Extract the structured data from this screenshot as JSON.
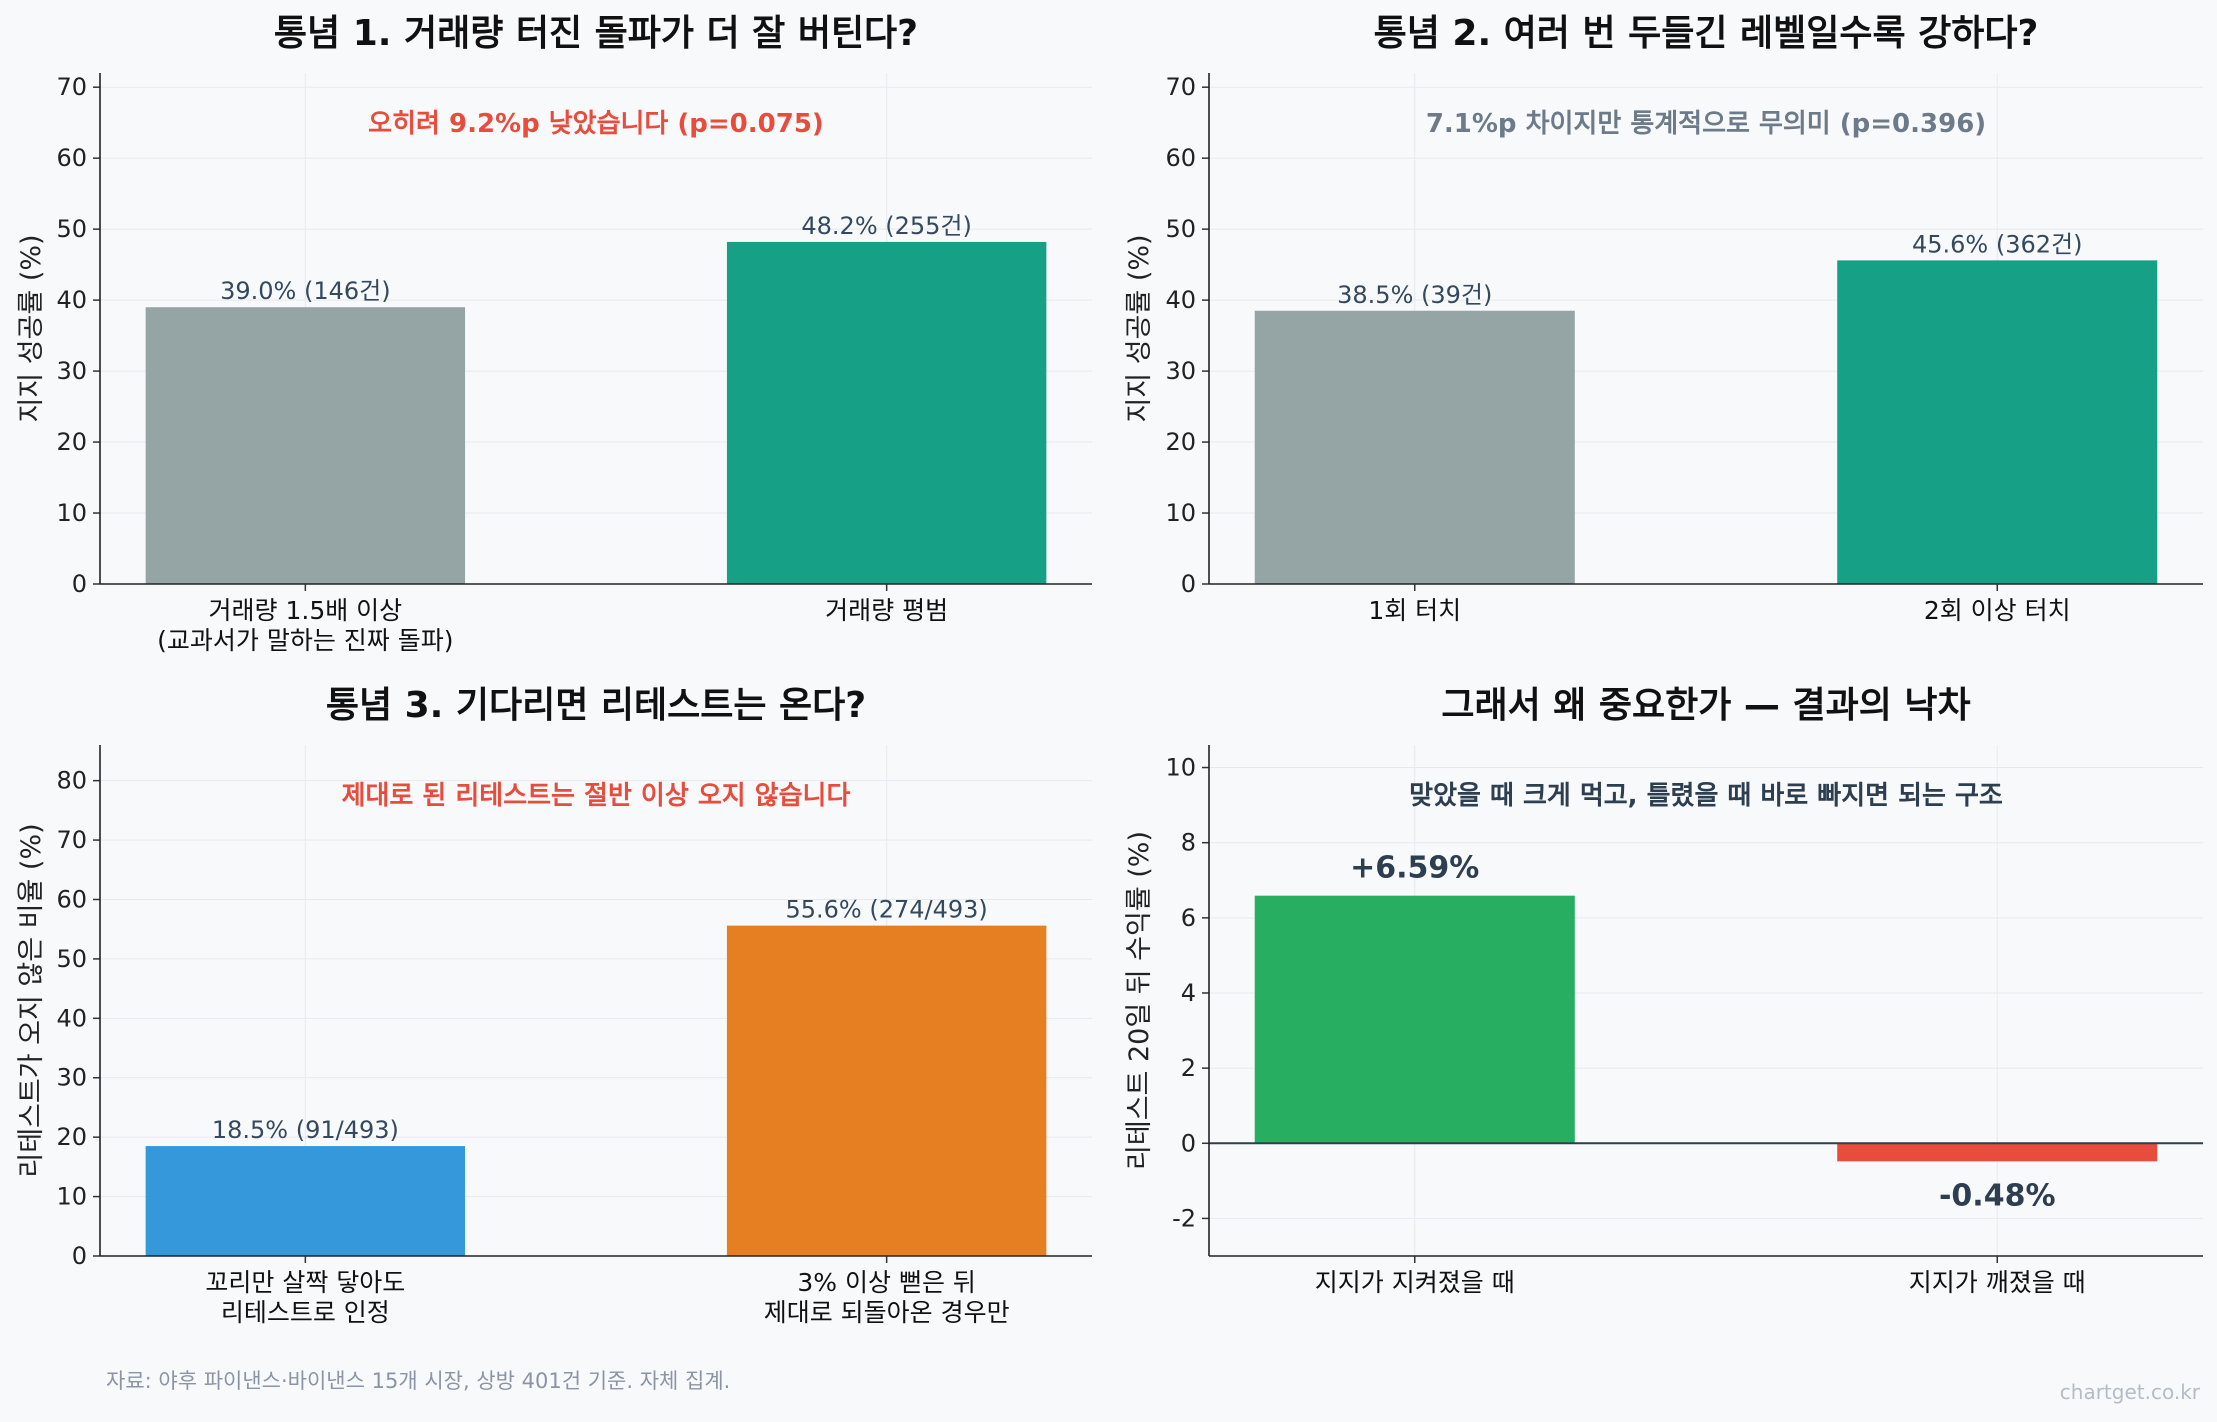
{
  "footer": {
    "source": "자료: 야후 파이낸스·바이낸스 15개 시장, 상방 401건 기준. 자체 집계.",
    "credit": "chartget.co.kr"
  },
  "chart_data": [
    {
      "type": "bar",
      "title": "통념 1. 거래량 터진 돌파가 더 잘 버틴다?",
      "ylabel": "지지 성공률 (%)",
      "ylim": [
        0,
        72
      ],
      "yticks": [
        0,
        10,
        20,
        30,
        40,
        50,
        60,
        70
      ],
      "grid": true,
      "categories": [
        [
          "거래량 1.5배 이상",
          "(교과서가 말하는 진짜 돌파)"
        ],
        [
          "거래량 평범"
        ]
      ],
      "values": [
        39.0,
        48.2
      ],
      "labels": [
        "39.0%  (146건)",
        "48.2%  (255건)"
      ],
      "colors": [
        "#95a5a6",
        "#16a085"
      ],
      "annotation": "오히려 9.2%p 낮았습니다 (p=0.075)",
      "annotation_color": "#e74c3c"
    },
    {
      "type": "bar",
      "title": "통념 2. 여러 번 두들긴 레벨일수록 강하다?",
      "ylabel": "지지 성공률 (%)",
      "ylim": [
        0,
        72
      ],
      "yticks": [
        0,
        10,
        20,
        30,
        40,
        50,
        60,
        70
      ],
      "grid": true,
      "categories": [
        [
          "1회 터치"
        ],
        [
          "2회 이상 터치"
        ]
      ],
      "values": [
        38.5,
        45.6
      ],
      "labels": [
        "38.5%  (39건)",
        "45.6%  (362건)"
      ],
      "colors": [
        "#95a5a6",
        "#16a085"
      ],
      "annotation": "7.1%p 차이지만 통계적으로 무의미 (p=0.396)",
      "annotation_color": "#6c7a89"
    },
    {
      "type": "bar",
      "title": "통념 3. 기다리면 리테스트는 온다?",
      "ylabel": "리테스트가 오지 않은 비율 (%)",
      "ylim": [
        0,
        86
      ],
      "yticks": [
        0,
        10,
        20,
        30,
        40,
        50,
        60,
        70,
        80
      ],
      "grid": true,
      "categories": [
        [
          "꼬리만 살짝 닿아도",
          "리테스트로 인정"
        ],
        [
          "3% 이상 뻗은 뒤",
          "제대로 되돌아온 경우만"
        ]
      ],
      "values": [
        18.5,
        55.6
      ],
      "labels": [
        "18.5%  (91/493)",
        "55.6%  (274/493)"
      ],
      "colors": [
        "#3498db",
        "#e67e22"
      ],
      "annotation": "제대로 된 리테스트는 절반 이상 오지 않습니다",
      "annotation_color": "#e74c3c"
    },
    {
      "type": "bar",
      "title": "그래서 왜 중요한가 — 결과의 낙차",
      "ylabel": "리테스트 20일 뒤 수익률 (%)",
      "ylim": [
        -3,
        10.6
      ],
      "yticks": [
        -2,
        0,
        2,
        4,
        6,
        8,
        10
      ],
      "grid": true,
      "categories": [
        [
          "지지가 지켜졌을 때"
        ],
        [
          "지지가 깨졌을 때"
        ]
      ],
      "values": [
        6.59,
        -0.48
      ],
      "labels": [
        "+6.59%",
        "-0.48%"
      ],
      "colors": [
        "#27ae60",
        "#e74c3c"
      ],
      "annotation": "맞았을 때 크게 먹고, 틀렸을 때 바로 빠지면 되는 구조",
      "annotation_color": "#2c3e50"
    }
  ]
}
